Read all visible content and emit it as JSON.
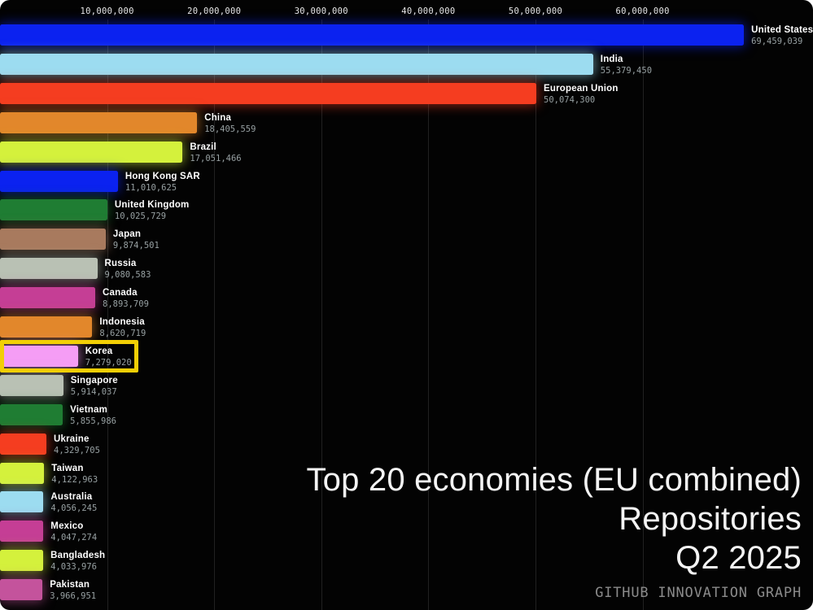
{
  "chart_data": {
    "type": "bar",
    "orientation": "horizontal",
    "title": "Top 20 economies (EU combined)",
    "subtitle": "Repositories",
    "period": "Q2 2025",
    "source": "GITHUB INNOVATION GRAPH",
    "grid": true,
    "legend": false,
    "xlim": [
      0,
      75900000
    ],
    "highlight_color": "#f2cf05",
    "x_axis": {
      "ticks": [
        "10,000,000",
        "20,000,000",
        "30,000,000",
        "40,000,000",
        "50,000,000",
        "60,000,000"
      ],
      "tick_values": [
        10000000,
        20000000,
        30000000,
        40000000,
        50000000,
        60000000
      ]
    },
    "bars": [
      {
        "label": "United States",
        "value": 69459039,
        "value_text": "69,459,039",
        "color": "#0b22f0",
        "highlighted": false
      },
      {
        "label": "India",
        "value": 55379450,
        "value_text": "55,379,450",
        "color": "#9cdcf0",
        "highlighted": false
      },
      {
        "label": "European Union",
        "value": 50074300,
        "value_text": "50,074,300",
        "color": "#f53d20",
        "highlighted": false
      },
      {
        "label": "China",
        "value": 18405559,
        "value_text": "18,405,559",
        "color": "#e2872b",
        "highlighted": false
      },
      {
        "label": "Brazil",
        "value": 17051466,
        "value_text": "17,051,466",
        "color": "#d4f13c",
        "highlighted": false
      },
      {
        "label": "Hong Kong SAR",
        "value": 11010625,
        "value_text": "11,010,625",
        "color": "#0b22f0",
        "highlighted": false
      },
      {
        "label": "United Kingdom",
        "value": 10025729,
        "value_text": "10,025,729",
        "color": "#1f7d33",
        "highlighted": false
      },
      {
        "label": "Japan",
        "value": 9874501,
        "value_text": "9,874,501",
        "color": "#a87a5e",
        "highlighted": false
      },
      {
        "label": "Russia",
        "value": 9080583,
        "value_text": "9,080,583",
        "color": "#b9c1b4",
        "highlighted": false
      },
      {
        "label": "Canada",
        "value": 8893709,
        "value_text": "8,893,709",
        "color": "#c53e95",
        "highlighted": false
      },
      {
        "label": "Indonesia",
        "value": 8620719,
        "value_text": "8,620,719",
        "color": "#e2872b",
        "highlighted": false
      },
      {
        "label": "Korea",
        "value": 7279020,
        "value_text": "7,279,020",
        "color": "#f59df5",
        "highlighted": true
      },
      {
        "label": "Singapore",
        "value": 5914037,
        "value_text": "5,914,037",
        "color": "#b9c1b4",
        "highlighted": false
      },
      {
        "label": "Vietnam",
        "value": 5855986,
        "value_text": "5,855,986",
        "color": "#1f7d33",
        "highlighted": false
      },
      {
        "label": "Ukraine",
        "value": 4329705,
        "value_text": "4,329,705",
        "color": "#f53d20",
        "highlighted": false
      },
      {
        "label": "Taiwan",
        "value": 4122963,
        "value_text": "4,122,963",
        "color": "#d4f13c",
        "highlighted": false
      },
      {
        "label": "Australia",
        "value": 4056245,
        "value_text": "4,056,245",
        "color": "#9cdcf0",
        "highlighted": false
      },
      {
        "label": "Mexico",
        "value": 4047274,
        "value_text": "4,047,274",
        "color": "#c53e95",
        "highlighted": false
      },
      {
        "label": "Bangladesh",
        "value": 4033976,
        "value_text": "4,033,976",
        "color": "#d4f13c",
        "highlighted": false
      },
      {
        "label": "Pakistan",
        "value": 3966951,
        "value_text": "3,966,951",
        "color": "#c4539c",
        "highlighted": false
      }
    ]
  }
}
